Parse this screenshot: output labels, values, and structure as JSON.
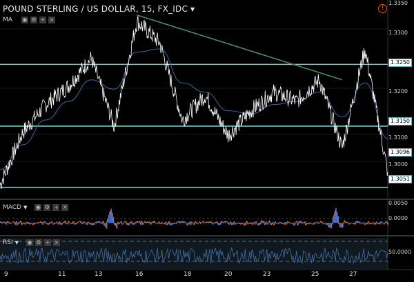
{
  "header": {
    "title": "POUND STERLING / US DOLLAR, 15, FX_IDC",
    "ma_label": "MA",
    "macd_label": "MACD",
    "rsi_label": "RSI",
    "warning_symbol": "!"
  },
  "price_axis": {
    "labels": [
      "1.3350",
      "1.3300",
      "1.3200",
      "1.3100",
      "1.3000"
    ],
    "boxed": [
      "1.3250",
      "1.3150",
      "1.3096",
      "1.3051"
    ]
  },
  "macd_axis": {
    "labels": [
      "0.0050",
      "0.0000"
    ]
  },
  "rsi_axis": {
    "labels": [
      "50.0000"
    ]
  },
  "x_axis": {
    "labels": [
      "9",
      "11",
      "13",
      "16",
      "18",
      "20",
      "23",
      "25",
      "27"
    ]
  },
  "colors": {
    "background": "#000000",
    "price_line": "#ffffff",
    "ma_line": "#3d6a9a",
    "levels": "#7ec8d4",
    "trendline": "#4a8a6a",
    "macd_line": "#e07020",
    "macd_hist": "#3b6fd4",
    "rsi_line": "#3d6a9a"
  },
  "chart_data": {
    "type": "line",
    "title": "POUND STERLING / US DOLLAR, 15, FX_IDC",
    "x": [
      "9",
      "10",
      "11",
      "12",
      "13",
      "14",
      "16",
      "17",
      "18",
      "19",
      "20",
      "21",
      "23",
      "24",
      "25",
      "26",
      "27",
      "28"
    ],
    "series": [
      {
        "name": "POUND STERLING / US DOLLAR",
        "values": [
          1.3055,
          1.314,
          1.3185,
          1.3215,
          1.326,
          1.315,
          1.332,
          1.3285,
          1.316,
          1.32,
          1.3135,
          1.3175,
          1.3205,
          1.319,
          1.3225,
          1.3115,
          1.3275,
          1.3075
        ]
      },
      {
        "name": "MA",
        "values": [
          1.308,
          1.312,
          1.316,
          1.319,
          1.3225,
          1.321,
          1.327,
          1.3275,
          1.322,
          1.3205,
          1.3175,
          1.317,
          1.3185,
          1.319,
          1.3205,
          1.3165,
          1.322,
          1.313
        ]
      }
    ],
    "levels": [
      1.325,
      1.315,
      1.3051
    ],
    "last_price": 1.3096,
    "trendline": {
      "from": [
        16,
        1.333
      ],
      "to": [
        26,
        1.3225
      ]
    },
    "ylim": [
      1.3035,
      1.3352
    ],
    "macd": {
      "ylim": [
        -0.003,
        0.006
      ],
      "ticks": [
        0.005,
        0.0
      ]
    },
    "rsi": {
      "ylim": [
        20,
        90
      ],
      "ticks": [
        50
      ]
    },
    "grid": true,
    "legend": "top-left"
  }
}
